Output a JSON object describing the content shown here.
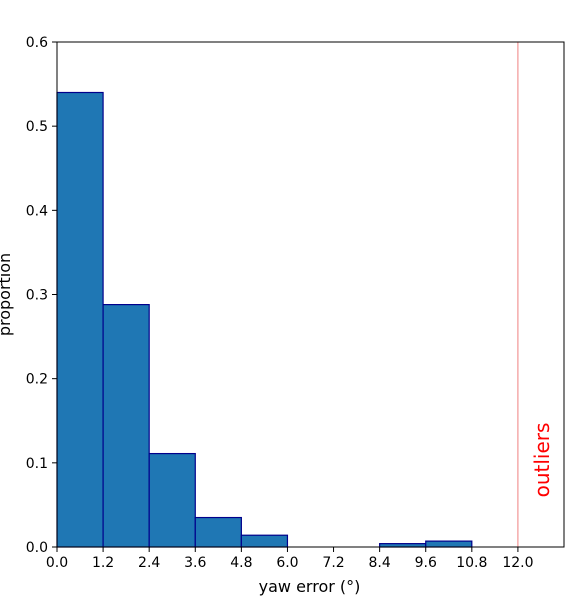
{
  "chart_data": {
    "type": "bar",
    "xlabel": "yaw error (°)",
    "ylabel": "proportion",
    "xlim": [
      0,
      13.2
    ],
    "ylim": [
      0,
      0.6
    ],
    "x_ticks": [
      "0.0",
      "1.2",
      "2.4",
      "3.6",
      "4.8",
      "6.0",
      "7.2",
      "8.4",
      "9.6",
      "10.8",
      "12.0"
    ],
    "y_ticks": [
      "0.0",
      "0.1",
      "0.2",
      "0.3",
      "0.4",
      "0.5",
      "0.6"
    ],
    "bins": [
      {
        "start": 0.0,
        "end": 1.2,
        "value": 0.54
      },
      {
        "start": 1.2,
        "end": 2.4,
        "value": 0.288
      },
      {
        "start": 2.4,
        "end": 3.6,
        "value": 0.111
      },
      {
        "start": 3.6,
        "end": 4.8,
        "value": 0.035
      },
      {
        "start": 4.8,
        "end": 6.0,
        "value": 0.014
      },
      {
        "start": 6.0,
        "end": 7.2,
        "value": 0.0
      },
      {
        "start": 7.2,
        "end": 8.4,
        "value": 0.0
      },
      {
        "start": 8.4,
        "end": 9.6,
        "value": 0.004
      },
      {
        "start": 9.6,
        "end": 10.8,
        "value": 0.007
      }
    ],
    "bar_color": "#1f77b4",
    "bar_edge_color": "#00008b",
    "outlier_threshold": 12.0,
    "outlier_label": "outliers",
    "outlier_color": "#ff0000",
    "outlier_line_color": "#f08080",
    "grid": false
  }
}
